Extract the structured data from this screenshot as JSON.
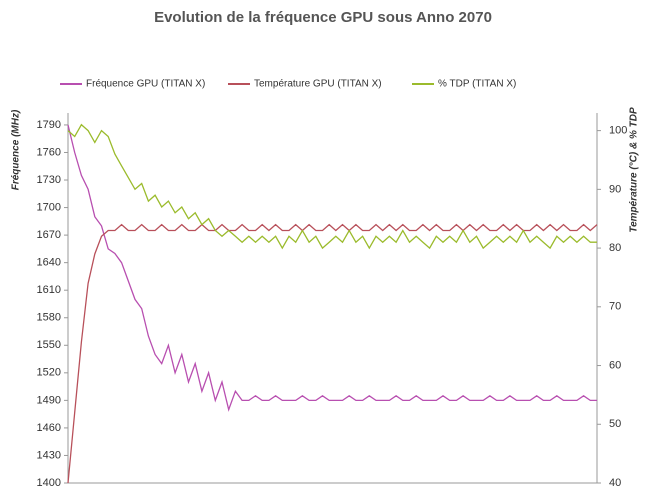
{
  "chart_data": {
    "type": "line",
    "title": "Evolution de la fréquence GPU sous Anno 2070",
    "y_label": "Fréquence (MHz)",
    "y2_label": "Température  (°C) & % TDP",
    "legend": "top",
    "grid": false,
    "ylim": [
      1400,
      1803
    ],
    "yticks": [
      1400,
      1430,
      1460,
      1490,
      1520,
      1550,
      1580,
      1610,
      1640,
      1670,
      1700,
      1730,
      1760,
      1790
    ],
    "y2lim": [
      40,
      103
    ],
    "y2ticks": [
      40,
      50,
      60,
      70,
      80,
      90,
      100
    ],
    "series": [
      {
        "name": "Fréquence GPU (TITAN X)",
        "color": "#b84fb0",
        "values": [
          1790,
          1760,
          1735,
          1720,
          1690,
          1680,
          1655,
          1650,
          1640,
          1620,
          1600,
          1590,
          1560,
          1540,
          1530,
          1550,
          1520,
          1540,
          1510,
          1530,
          1500,
          1520,
          1490,
          1510,
          1480,
          1500,
          1490,
          1490,
          1495,
          1490,
          1490,
          1495,
          1490,
          1490,
          1490,
          1495,
          1490,
          1490,
          1495,
          1490,
          1490,
          1490,
          1495,
          1490,
          1490,
          1495,
          1490,
          1490,
          1490,
          1495,
          1490,
          1490,
          1495,
          1490,
          1490,
          1490,
          1495,
          1490,
          1490,
          1495,
          1490,
          1490,
          1490,
          1495,
          1490,
          1490,
          1495,
          1490,
          1490,
          1490,
          1495,
          1490,
          1490,
          1495,
          1490,
          1490,
          1490,
          1495,
          1490,
          1490
        ]
      },
      {
        "name": "Température GPU  (TITAN X)",
        "color": "#b8505a",
        "axis": "y2",
        "values": [
          40,
          52,
          64,
          74,
          79,
          82,
          83,
          83,
          84,
          83,
          83,
          84,
          83,
          83,
          84,
          83,
          83,
          84,
          83,
          83,
          84,
          83,
          83,
          84,
          83,
          83,
          84,
          83,
          83,
          84,
          83,
          84,
          83,
          83,
          84,
          83,
          84,
          83,
          83,
          84,
          83,
          84,
          83,
          84,
          83,
          83,
          84,
          83,
          84,
          83,
          84,
          83,
          83,
          84,
          83,
          84,
          83,
          83,
          84,
          83,
          84,
          83,
          84,
          83,
          83,
          84,
          83,
          84,
          83,
          83,
          84,
          83,
          84,
          83,
          84,
          83,
          83,
          84,
          83,
          84
        ]
      },
      {
        "name": "% TDP (TITAN X)",
        "color": "#9bbb2c",
        "axis": "y2",
        "values": [
          100,
          99,
          101,
          100,
          98,
          100,
          99,
          96,
          94,
          92,
          90,
          91,
          88,
          89,
          87,
          88,
          86,
          87,
          85,
          86,
          84,
          85,
          83,
          82,
          83,
          82,
          81,
          82,
          81,
          82,
          81,
          82,
          80,
          82,
          81,
          83,
          81,
          82,
          80,
          81,
          82,
          81,
          83,
          81,
          82,
          80,
          82,
          81,
          82,
          81,
          83,
          81,
          82,
          81,
          80,
          82,
          81,
          82,
          81,
          83,
          81,
          82,
          80,
          81,
          82,
          81,
          82,
          81,
          83,
          81,
          82,
          81,
          80,
          82,
          81,
          82,
          81,
          82,
          81,
          81
        ]
      }
    ]
  }
}
